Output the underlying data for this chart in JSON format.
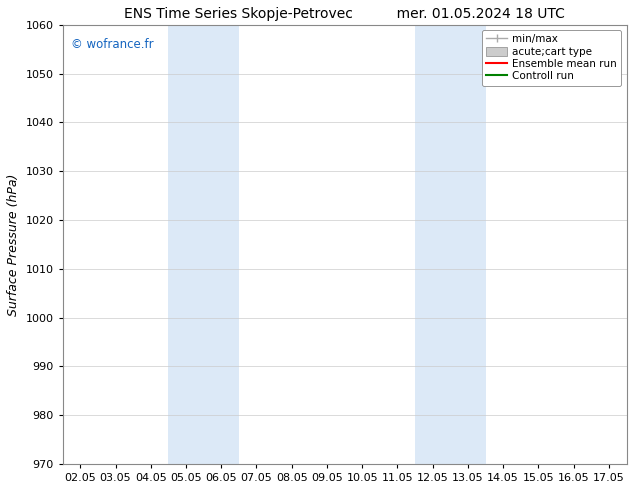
{
  "title_left": "ENS Time Series Skopje-Petrovec",
  "title_right": "mer. 01.05.2024 18 UTC",
  "ylabel": "Surface Pressure (hPa)",
  "ylim": [
    970,
    1060
  ],
  "yticks": [
    970,
    980,
    990,
    1000,
    1010,
    1020,
    1030,
    1040,
    1050,
    1060
  ],
  "xtick_labels": [
    "02.05",
    "03.05",
    "04.05",
    "05.05",
    "06.05",
    "07.05",
    "08.05",
    "09.05",
    "10.05",
    "11.05",
    "12.05",
    "13.05",
    "14.05",
    "15.05",
    "16.05",
    "17.05"
  ],
  "xtick_values": [
    0,
    1,
    2,
    3,
    4,
    5,
    6,
    7,
    8,
    9,
    10,
    11,
    12,
    13,
    14,
    15
  ],
  "xlim": [
    -0.5,
    15.5
  ],
  "shaded_bands": [
    {
      "x_start": 2.5,
      "x_end": 4.5,
      "color": "#dce9f7"
    },
    {
      "x_start": 9.5,
      "x_end": 11.5,
      "color": "#dce9f7"
    }
  ],
  "watermark_text": "© wofrance.fr",
  "watermark_color": "#1565C0",
  "background_color": "#ffffff",
  "legend_entries": [
    {
      "label": "min/max",
      "color": "#aaaaaa",
      "lw": 1.0,
      "type": "errorbar"
    },
    {
      "label": "acute;cart type",
      "color": "#cccccc",
      "lw": 8,
      "type": "fill"
    },
    {
      "label": "Ensemble mean run",
      "color": "#ff0000",
      "lw": 1.5,
      "type": "line"
    },
    {
      "label": "Controll run",
      "color": "#008000",
      "lw": 1.5,
      "type": "line"
    }
  ],
  "grid_color": "#cccccc",
  "title_fontsize": 10,
  "ylabel_fontsize": 9,
  "tick_fontsize": 8,
  "legend_fontsize": 7.5
}
